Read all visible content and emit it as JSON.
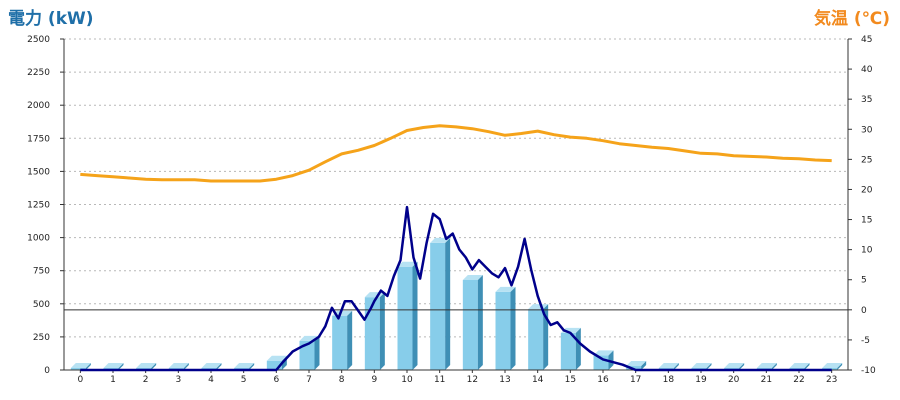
{
  "chart_data": {
    "type": "bar+line",
    "left_axis_label": "電力 (kW)",
    "right_axis_label": "気温 (℃)",
    "left_ticks": [
      "0",
      "250",
      "500",
      "750",
      "1000",
      "1250",
      "1500",
      "1750",
      "2000",
      "2250",
      "2500"
    ],
    "right_ticks": [
      "-10",
      "-5",
      "0",
      "5",
      "10",
      "15",
      "20",
      "25",
      "30",
      "35",
      "40",
      "45"
    ],
    "x_ticks": [
      "0",
      "1",
      "2",
      "3",
      "4",
      "5",
      "6",
      "7",
      "8",
      "9",
      "10",
      "11",
      "12",
      "13",
      "14",
      "15",
      "16",
      "17",
      "18",
      "19",
      "20",
      "21",
      "22",
      "23"
    ],
    "ylim_left": [
      0,
      2500
    ],
    "ylim_right": [
      -10,
      45
    ],
    "grid": true,
    "colors": {
      "bar": "#87cdea",
      "bar_side": "#3f8fb5",
      "power_line": "#00008b",
      "temp_line": "#f5a31a",
      "title_left": "#1f6fa8",
      "title_right": "#f28a1e"
    },
    "bars": {
      "name": "電力",
      "x": [
        0,
        1,
        2,
        3,
        4,
        5,
        6,
        7,
        8,
        9,
        10,
        11,
        12,
        13,
        14,
        15,
        16,
        17,
        18,
        19,
        20,
        21,
        22,
        23
      ],
      "values": [
        15,
        15,
        15,
        15,
        15,
        15,
        70,
        220,
        410,
        550,
        780,
        960,
        680,
        590,
        460,
        280,
        110,
        30,
        15,
        15,
        15,
        15,
        15,
        15
      ]
    },
    "power_line": {
      "name": "電力",
      "x": [
        0,
        1,
        2,
        3,
        4,
        5,
        6,
        6.2,
        6.5,
        6.8,
        7.0,
        7.3,
        7.5,
        7.7,
        7.9,
        8.1,
        8.3,
        8.5,
        8.7,
        8.9,
        9.0,
        9.2,
        9.4,
        9.6,
        9.8,
        10.0,
        10.2,
        10.4,
        10.6,
        10.8,
        11.0,
        11.2,
        11.4,
        11.6,
        11.8,
        12.0,
        12.2,
        12.4,
        12.6,
        12.8,
        13.0,
        13.2,
        13.4,
        13.6,
        13.8,
        14.0,
        14.2,
        14.4,
        14.6,
        14.8,
        15.0,
        15.3,
        15.6,
        16.0,
        16.3,
        16.6,
        17.0,
        17.5,
        18,
        19,
        20,
        21,
        22,
        23
      ],
      "values": [
        0,
        0,
        0,
        0,
        0,
        0,
        0,
        60,
        140,
        180,
        200,
        250,
        330,
        470,
        390,
        520,
        520,
        450,
        380,
        470,
        520,
        600,
        560,
        710,
        830,
        1230,
        850,
        690,
        960,
        1180,
        1140,
        990,
        1030,
        910,
        850,
        760,
        830,
        780,
        730,
        700,
        770,
        640,
        780,
        990,
        760,
        560,
        420,
        340,
        360,
        300,
        280,
        200,
        140,
        80,
        60,
        40,
        0,
        0,
        0,
        0,
        0,
        0,
        0,
        0
      ]
    },
    "temp_line": {
      "name": "気温",
      "x": [
        0,
        0.5,
        1,
        1.5,
        2,
        2.5,
        3,
        3.5,
        4,
        4.5,
        5,
        5.5,
        6,
        6.5,
        7,
        7.5,
        8,
        8.5,
        9,
        9.5,
        10,
        10.5,
        11,
        11.5,
        12,
        12.5,
        13,
        13.5,
        14,
        14.5,
        15,
        15.5,
        16,
        16.5,
        17,
        17.5,
        18,
        18.5,
        19,
        19.5,
        20,
        20.5,
        21,
        21.5,
        22,
        22.5,
        23
      ],
      "values": [
        22.5,
        22.3,
        22.1,
        21.9,
        21.7,
        21.6,
        21.6,
        21.6,
        21.4,
        21.4,
        21.4,
        21.4,
        21.7,
        22.3,
        23.2,
        24.6,
        25.9,
        26.5,
        27.3,
        28.5,
        29.8,
        30.3,
        30.6,
        30.4,
        30.1,
        29.6,
        29.0,
        29.3,
        29.7,
        29.1,
        28.7,
        28.5,
        28.1,
        27.6,
        27.3,
        27.0,
        26.8,
        26.4,
        26.0,
        25.9,
        25.6,
        25.5,
        25.4,
        25.2,
        25.1,
        24.9,
        24.8
      ]
    }
  }
}
